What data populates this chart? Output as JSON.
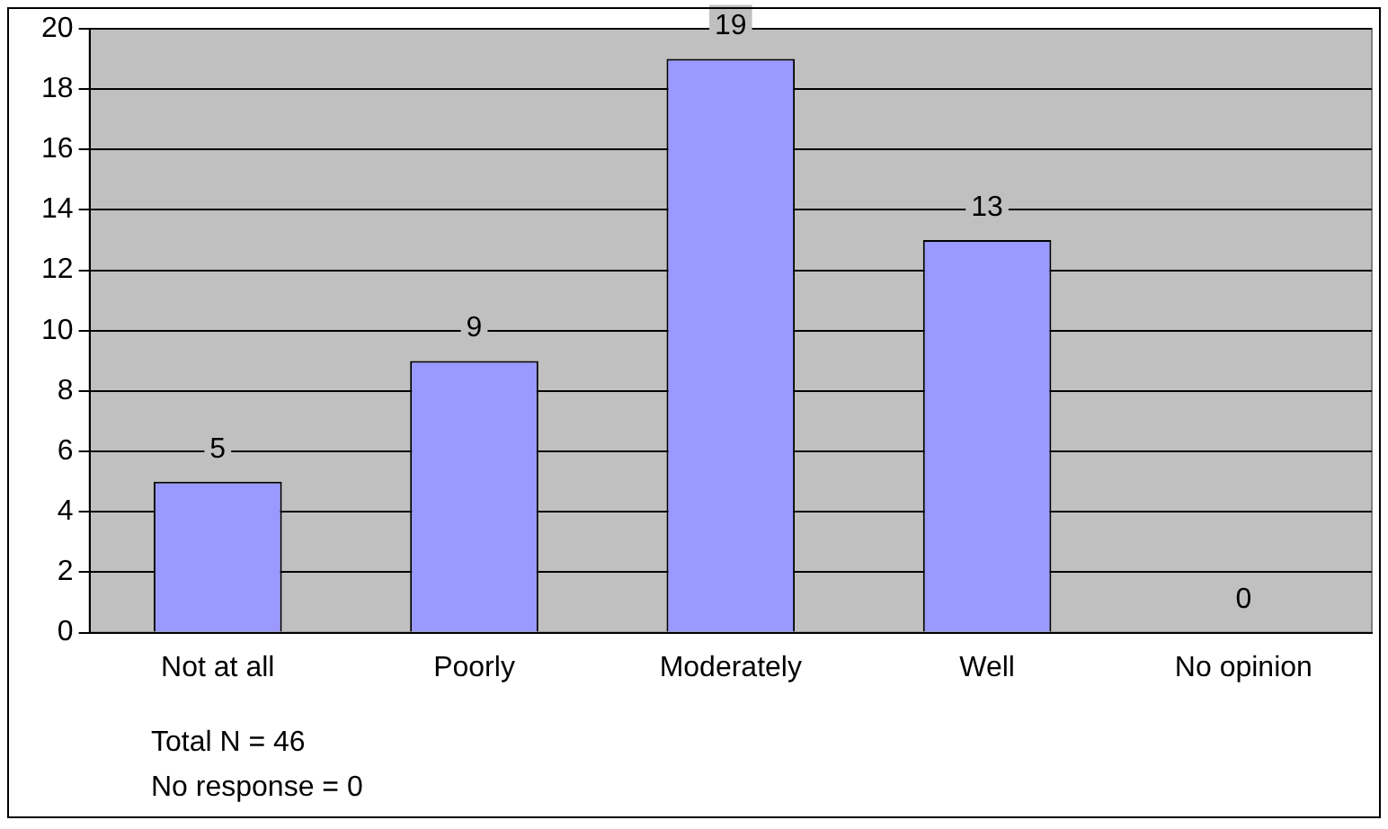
{
  "chart_data": {
    "type": "bar",
    "categories": [
      "Not at all",
      "Poorly",
      "Moderately",
      "Well",
      "No opinion"
    ],
    "values": [
      5,
      9,
      19,
      13,
      0
    ],
    "color": "#9999ff",
    "ylim": [
      0,
      20
    ],
    "yticks": [
      0,
      2,
      4,
      6,
      8,
      10,
      12,
      14,
      16,
      18,
      20
    ],
    "grid": "y",
    "data_labels": true,
    "legend": false,
    "annotations": [
      "Total N = 46",
      "No response = 0"
    ]
  }
}
